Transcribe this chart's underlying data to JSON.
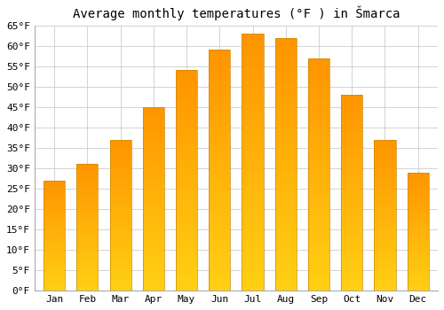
{
  "title": "Average monthly temperatures (°F ) in Šmarca",
  "months": [
    "Jan",
    "Feb",
    "Mar",
    "Apr",
    "May",
    "Jun",
    "Jul",
    "Aug",
    "Sep",
    "Oct",
    "Nov",
    "Dec"
  ],
  "values": [
    27,
    31,
    37,
    45,
    54,
    59,
    63,
    62,
    57,
    48,
    37,
    29
  ],
  "bar_color": "#FFAA00",
  "bar_color_light": "#FFD060",
  "bar_edge_color": "#CC8800",
  "ylim": [
    0,
    65
  ],
  "yticks": [
    0,
    5,
    10,
    15,
    20,
    25,
    30,
    35,
    40,
    45,
    50,
    55,
    60,
    65
  ],
  "ytick_labels": [
    "0°F",
    "5°F",
    "10°F",
    "15°F",
    "20°F",
    "25°F",
    "30°F",
    "35°F",
    "40°F",
    "45°F",
    "50°F",
    "55°F",
    "60°F",
    "65°F"
  ],
  "background_color": "#ffffff",
  "grid_color": "#cccccc",
  "title_fontsize": 10,
  "tick_fontsize": 8,
  "bar_width": 0.65
}
